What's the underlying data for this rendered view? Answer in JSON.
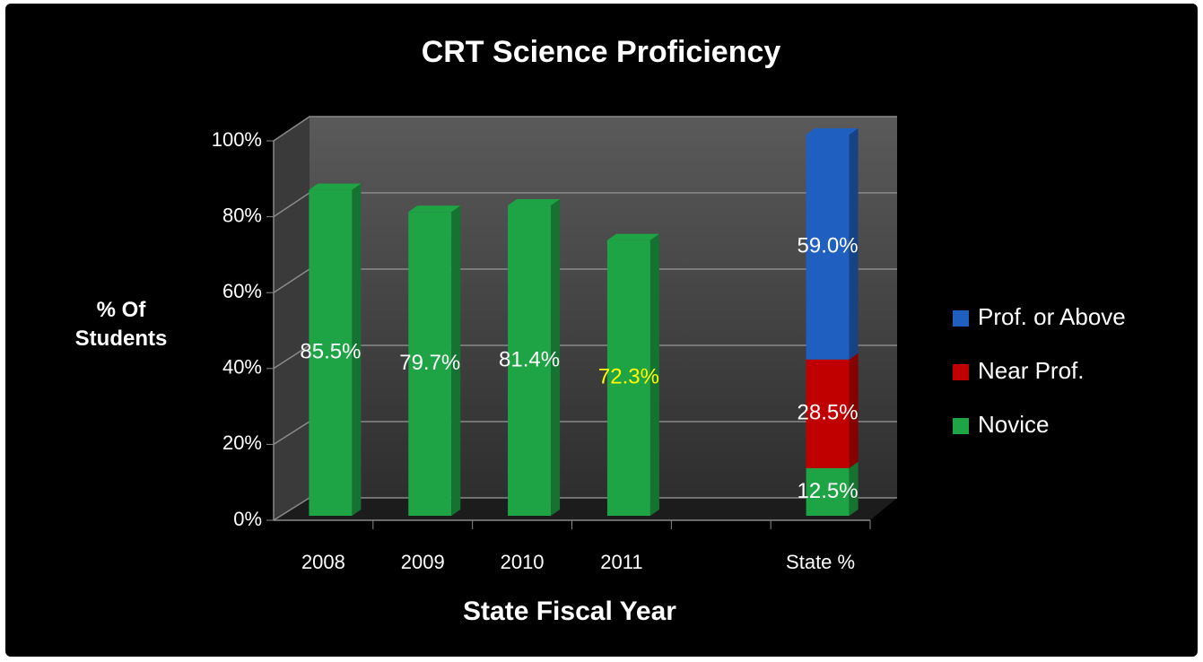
{
  "chart_data": {
    "type": "bar3d_stacked",
    "title": "CRT Science Proficiency",
    "x_label": "State Fiscal Year",
    "y_label": "% Of Students",
    "categories": [
      "2008",
      "2009",
      "2010",
      "2011",
      null,
      "State %"
    ],
    "series": [
      {
        "name": "Novice",
        "color": "#1ea345",
        "values": [
          85.5,
          79.7,
          81.4,
          72.3,
          null,
          12.5
        ],
        "value_labels": [
          "85.5%",
          "79.7%",
          "81.4%",
          "72.3%",
          null,
          "12.5%"
        ],
        "value_label_colors": [
          "#ffffff",
          "#ffffff",
          "#ffffff",
          "#ffff00",
          null,
          "#ffffff"
        ]
      },
      {
        "name": "Near Prof.",
        "color": "#c00000",
        "values": [
          null,
          null,
          null,
          null,
          null,
          28.5
        ],
        "value_labels": [
          null,
          null,
          null,
          null,
          null,
          "28.5%"
        ],
        "value_label_colors": [
          null,
          null,
          null,
          null,
          null,
          "#ffffff"
        ]
      },
      {
        "name": "Prof. or Above",
        "color": "#1f5fc0",
        "values": [
          null,
          null,
          null,
          null,
          null,
          59.0
        ],
        "value_labels": [
          null,
          null,
          null,
          null,
          null,
          "59.0%"
        ],
        "value_label_colors": [
          null,
          null,
          null,
          null,
          null,
          "#ffffff"
        ]
      }
    ],
    "ylim": [
      0,
      100
    ],
    "yticks": [
      {
        "value": 0,
        "label": "0%"
      },
      {
        "value": 20,
        "label": "20%"
      },
      {
        "value": 40,
        "label": "40%"
      },
      {
        "value": 60,
        "label": "60%"
      },
      {
        "value": 80,
        "label": "80%"
      },
      {
        "value": 100,
        "label": "100%"
      }
    ],
    "grid": true,
    "legend": "right"
  }
}
